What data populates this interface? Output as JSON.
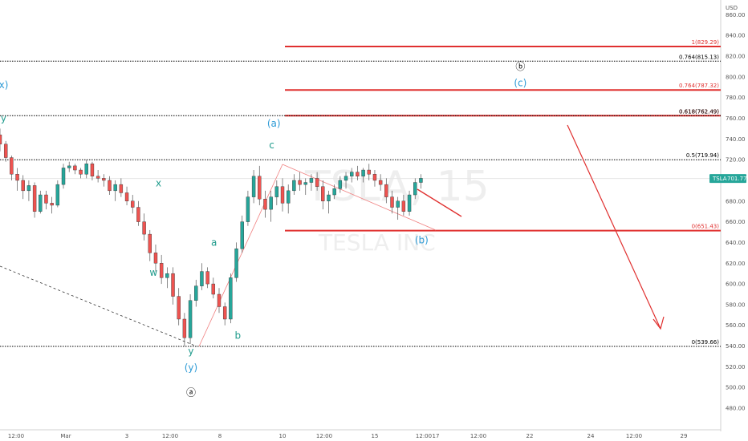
{
  "chart_data": {
    "type": "candlestick",
    "symbol": "TSLA",
    "currency": "USD",
    "watermark": {
      "ticker": "TSLA, 15",
      "name": "TESLA INC"
    },
    "last_price": {
      "label": "TSLA",
      "value": "701.77",
      "color": "#26a69a"
    },
    "ylim": [
      470,
      875
    ],
    "y_ticks": [
      480,
      500,
      520,
      540,
      560,
      580,
      600,
      620,
      640,
      660,
      680,
      700,
      720,
      740,
      760,
      780,
      800,
      820,
      840,
      860
    ],
    "x_ticks": [
      "12:00",
      "Mar",
      "3",
      "12:00",
      "8",
      "10",
      "12:00",
      "15",
      "12:00",
      "17",
      "12:00",
      "22",
      "24",
      "12:00",
      "29"
    ],
    "fib_levels": [
      {
        "label": "1(829.29)",
        "price": 829.29,
        "style": "solid",
        "color": "#e0302f"
      },
      {
        "label": "0.764(815.13)",
        "price": 815.13,
        "style": "dotted",
        "color": "#000000"
      },
      {
        "label": "0.764(787.32)",
        "price": 787.32,
        "style": "solid",
        "color": "#e0302f"
      },
      {
        "label": "0.618(762.49)",
        "price": 762.49,
        "style": "solid",
        "color": "#e0302f"
      },
      {
        "label": "0.618(762.49)",
        "price": 762.49,
        "style": "dotted",
        "color": "#000000"
      },
      {
        "label": "0.5(719.94)",
        "price": 719.94,
        "style": "dotted",
        "color": "#000000"
      },
      {
        "label": "0(651.43)",
        "price": 651.43,
        "style": "solid",
        "color": "#e0302f"
      },
      {
        "label": "0(539.66)",
        "price": 539.66,
        "style": "dotted",
        "color": "#000000"
      }
    ],
    "wave_labels": [
      {
        "text": "x)",
        "price": 789,
        "t": 0.005,
        "color": "#2e9bd6"
      },
      {
        "text": "y",
        "price": 757,
        "t": 0.005,
        "color": "#1f9b8c"
      },
      {
        "text": "x",
        "price": 694,
        "t": 0.22,
        "color": "#1f9b8c"
      },
      {
        "text": "w",
        "price": 608,
        "t": 0.213,
        "color": "#1f9b8c"
      },
      {
        "text": "a",
        "price": 637,
        "t": 0.297,
        "color": "#1f9b8c"
      },
      {
        "text": "b",
        "price": 547,
        "t": 0.33,
        "color": "#1f9b8c"
      },
      {
        "text": "y",
        "price": 532,
        "t": 0.265,
        "color": "#1f9b8c"
      },
      {
        "text": "(y)",
        "price": 516,
        "t": 0.265,
        "color": "#2e9bd6"
      },
      {
        "text": "ⓐ",
        "price": 492,
        "t": 0.265,
        "color": "#000000"
      },
      {
        "text": "(a)",
        "price": 752,
        "t": 0.38,
        "color": "#2e9bd6"
      },
      {
        "text": "c",
        "price": 731,
        "t": 0.377,
        "color": "#1f9b8c"
      },
      {
        "text": "(b)",
        "price": 639,
        "t": 0.585,
        "color": "#2e9bd6"
      },
      {
        "text": "ⓑ",
        "price": 807,
        "t": 0.722,
        "color": "#000000"
      },
      {
        "text": "(c)",
        "price": 791,
        "t": 0.722,
        "color": "#2e9bd6"
      }
    ],
    "candles_approx": [
      [
        0.0,
        744,
        750,
        728,
        735
      ],
      [
        0.008,
        735,
        738,
        718,
        722
      ],
      [
        0.016,
        722,
        724,
        700,
        706
      ],
      [
        0.024,
        706,
        712,
        690,
        700
      ],
      [
        0.032,
        700,
        705,
        682,
        690
      ],
      [
        0.04,
        690,
        700,
        680,
        695
      ],
      [
        0.048,
        695,
        698,
        664,
        670
      ],
      [
        0.056,
        670,
        690,
        668,
        686
      ],
      [
        0.064,
        686,
        690,
        672,
        678
      ],
      [
        0.072,
        678,
        684,
        668,
        676
      ],
      [
        0.08,
        676,
        700,
        674,
        696
      ],
      [
        0.088,
        696,
        716,
        692,
        712
      ],
      [
        0.096,
        712,
        718,
        708,
        714
      ],
      [
        0.104,
        714,
        716,
        706,
        710
      ],
      [
        0.112,
        710,
        712,
        702,
        706
      ],
      [
        0.12,
        706,
        720,
        702,
        716
      ],
      [
        0.128,
        716,
        718,
        700,
        704
      ],
      [
        0.136,
        704,
        710,
        698,
        702
      ],
      [
        0.144,
        702,
        706,
        694,
        700
      ],
      [
        0.152,
        700,
        704,
        686,
        690
      ],
      [
        0.16,
        690,
        700,
        680,
        696
      ],
      [
        0.168,
        696,
        702,
        684,
        688
      ],
      [
        0.176,
        688,
        694,
        676,
        680
      ],
      [
        0.184,
        680,
        686,
        668,
        674
      ],
      [
        0.192,
        674,
        680,
        656,
        660
      ],
      [
        0.2,
        660,
        668,
        642,
        648
      ],
      [
        0.208,
        648,
        652,
        622,
        630
      ],
      [
        0.216,
        630,
        638,
        612,
        620
      ],
      [
        0.224,
        620,
        628,
        600,
        606
      ],
      [
        0.232,
        606,
        616,
        596,
        610
      ],
      [
        0.24,
        610,
        616,
        580,
        588
      ],
      [
        0.248,
        588,
        596,
        560,
        566
      ],
      [
        0.256,
        566,
        572,
        540,
        548
      ],
      [
        0.264,
        548,
        590,
        542,
        584
      ],
      [
        0.272,
        584,
        604,
        578,
        598
      ],
      [
        0.28,
        598,
        620,
        594,
        612
      ],
      [
        0.288,
        612,
        616,
        596,
        600
      ],
      [
        0.296,
        600,
        606,
        586,
        590
      ],
      [
        0.304,
        590,
        596,
        572,
        578
      ],
      [
        0.312,
        578,
        582,
        560,
        566
      ],
      [
        0.32,
        566,
        610,
        562,
        606
      ],
      [
        0.328,
        606,
        640,
        602,
        634
      ],
      [
        0.336,
        634,
        666,
        630,
        660
      ],
      [
        0.344,
        660,
        690,
        656,
        684
      ],
      [
        0.352,
        684,
        710,
        678,
        704
      ],
      [
        0.36,
        704,
        714,
        676,
        682
      ],
      [
        0.368,
        682,
        690,
        664,
        672
      ],
      [
        0.376,
        672,
        690,
        660,
        684
      ],
      [
        0.384,
        684,
        700,
        676,
        694
      ],
      [
        0.392,
        694,
        702,
        670,
        678
      ],
      [
        0.4,
        678,
        696,
        668,
        690
      ],
      [
        0.408,
        690,
        706,
        686,
        700
      ],
      [
        0.416,
        700,
        708,
        690,
        696
      ],
      [
        0.424,
        696,
        702,
        686,
        698
      ],
      [
        0.432,
        698,
        706,
        690,
        702
      ],
      [
        0.44,
        702,
        708,
        690,
        694
      ],
      [
        0.448,
        694,
        700,
        672,
        680
      ],
      [
        0.456,
        680,
        690,
        668,
        686
      ],
      [
        0.464,
        686,
        696,
        682,
        692
      ],
      [
        0.472,
        692,
        704,
        688,
        700
      ],
      [
        0.48,
        700,
        708,
        692,
        704
      ],
      [
        0.488,
        704,
        712,
        698,
        708
      ],
      [
        0.496,
        708,
        714,
        700,
        704
      ],
      [
        0.504,
        704,
        712,
        698,
        710
      ],
      [
        0.512,
        710,
        716,
        700,
        706
      ],
      [
        0.52,
        706,
        710,
        694,
        700
      ],
      [
        0.528,
        700,
        706,
        690,
        696
      ],
      [
        0.536,
        696,
        702,
        678,
        684
      ],
      [
        0.544,
        684,
        690,
        668,
        674
      ],
      [
        0.552,
        674,
        684,
        662,
        680
      ],
      [
        0.56,
        680,
        686,
        666,
        670
      ],
      [
        0.568,
        670,
        690,
        666,
        686
      ],
      [
        0.576,
        686,
        702,
        682,
        698
      ],
      [
        0.584,
        698,
        706,
        692,
        702
      ]
    ]
  }
}
